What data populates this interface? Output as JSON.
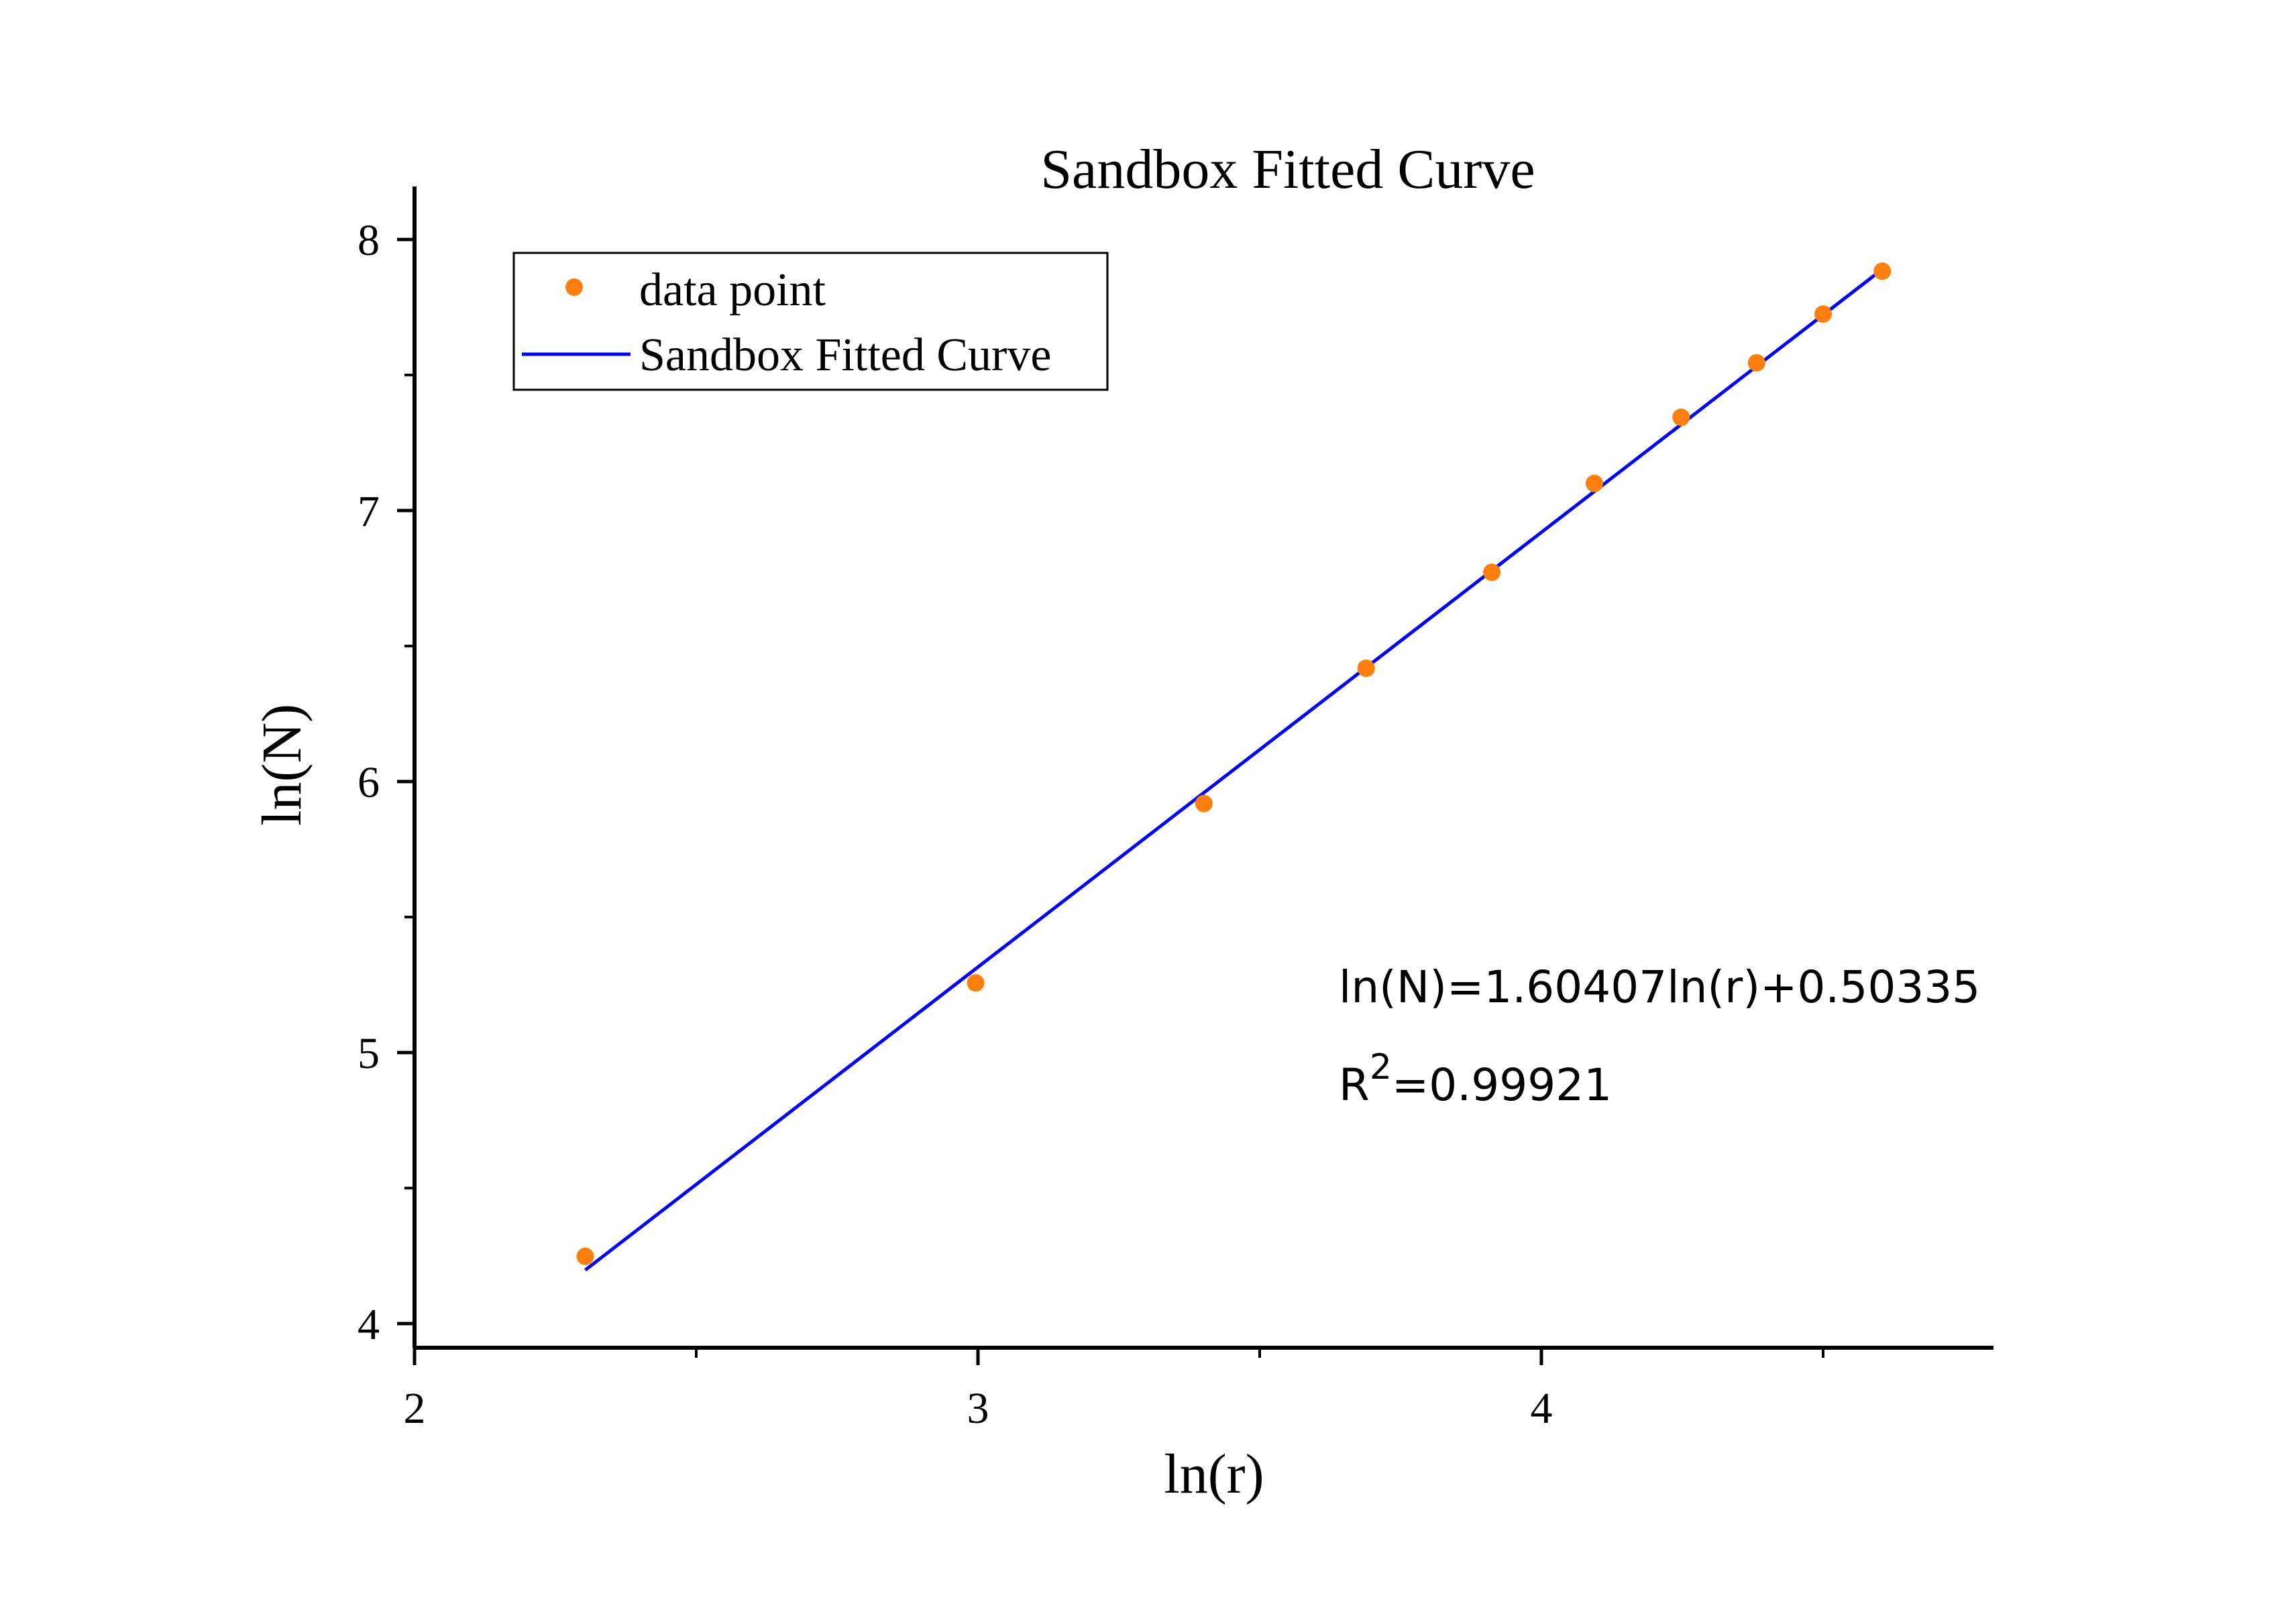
{
  "chart_data": {
    "type": "scatter",
    "title": "Sandbox Fitted Curve",
    "xlabel": "ln(r)",
    "ylabel": "ln(N)",
    "xlim": [
      2,
      4.8
    ],
    "ylim": [
      3.9,
      8.2
    ],
    "x_ticks": [
      2,
      3,
      4
    ],
    "x_minor_ticks": [
      2.5,
      3.5,
      4.5
    ],
    "y_ticks": [
      4,
      5,
      6,
      7,
      8
    ],
    "y_minor_ticks": [
      4.5,
      5.5,
      6.5,
      7.5
    ],
    "series": [
      {
        "name": "data point",
        "kind": "scatter",
        "color": "#ff7f0e",
        "points": [
          {
            "x": 2.303,
            "y": 4.248
          },
          {
            "x": 2.996,
            "y": 5.257
          },
          {
            "x": 3.401,
            "y": 5.919
          },
          {
            "x": 3.689,
            "y": 6.418
          },
          {
            "x": 3.912,
            "y": 6.772
          },
          {
            "x": 4.094,
            "y": 7.1
          },
          {
            "x": 4.248,
            "y": 7.344
          },
          {
            "x": 4.382,
            "y": 7.545
          },
          {
            "x": 4.5,
            "y": 7.725
          },
          {
            "x": 4.605,
            "y": 7.883
          }
        ]
      },
      {
        "name": "Sandbox Fitted Curve",
        "kind": "line",
        "color": "#0000ff",
        "slope": 1.60407,
        "intercept": 0.50335,
        "x_range": [
          2.303,
          4.605
        ]
      }
    ],
    "legend": {
      "placement": "top-left",
      "entries": [
        "data point",
        "Sandbox Fitted Curve"
      ]
    },
    "annotations": {
      "equation": "ln(N)=1.60407ln(r)+0.50335",
      "r2_prefix": "R",
      "r2_exponent": "2",
      "r2_value": "=0.99921"
    },
    "grid": false
  }
}
